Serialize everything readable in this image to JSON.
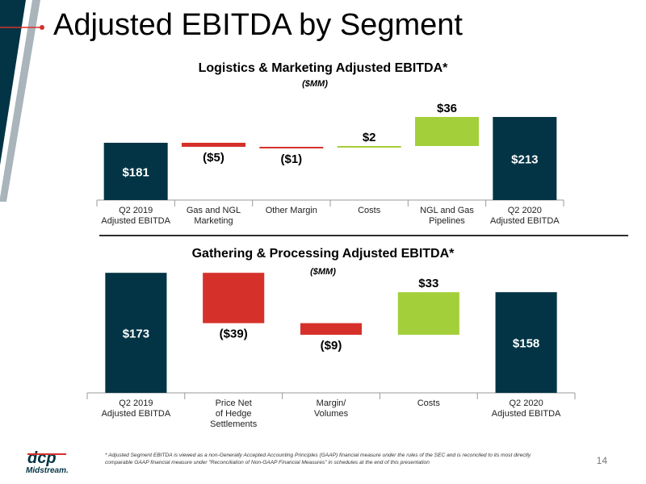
{
  "page": {
    "title": "Adjusted EBITDA by Segment",
    "footnote": "* Adjusted Segment EBITDA is viewed as a non-Generally Accepted Accounting Principles (GAAP) financial measure under the rules of the SEC and is reconciled to its most directly comparable GAAP financial measure under \"Reconciliation of Non-GAAP Financial Measures\" in schedules at the end of this presentation",
    "page_number": "14",
    "logo_text": "dcp Midstream",
    "colors": {
      "total": "#023445",
      "decrease": "#d5312a",
      "increase": "#a3cf3a",
      "accent": "#d5312a"
    }
  },
  "chart_data": [
    {
      "type": "bar",
      "subtype": "waterfall",
      "title": "Logistics & Marketing Adjusted EBITDA*",
      "unit": "($MM)",
      "categories": [
        "Q2 2019\nAdjusted EBITDA",
        "Gas and NGL\nMarketing",
        "Other Margin",
        "Costs",
        "NGL and Gas\nPipelines",
        "Q2 2020\nAdjusted EBITDA"
      ],
      "values": [
        181,
        -5,
        -1,
        2,
        36,
        213
      ],
      "labels": [
        "$181",
        "($5)",
        "($1)",
        "$2",
        "$36",
        "$213"
      ],
      "kinds": [
        "total",
        "decrease",
        "decrease",
        "increase",
        "increase",
        "total"
      ]
    },
    {
      "type": "bar",
      "subtype": "waterfall",
      "title": "Gathering & Processing Adjusted EBITDA*",
      "unit": "($MM)",
      "categories": [
        "Q2 2019\nAdjusted EBITDA",
        "Price Net\nof Hedge\nSettlements",
        "Margin/\nVolumes",
        "Costs",
        "Q2 2020\nAdjusted EBITDA"
      ],
      "values": [
        173,
        -39,
        -9,
        33,
        158
      ],
      "labels": [
        "$173",
        "($39)",
        "($9)",
        "$33",
        "$158"
      ],
      "kinds": [
        "total",
        "decrease",
        "decrease",
        "increase",
        "total"
      ]
    }
  ]
}
